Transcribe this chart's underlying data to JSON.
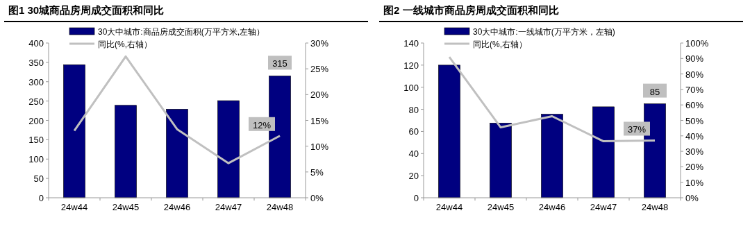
{
  "chart_data": [
    {
      "type": "bar",
      "title": "图1  30城商品房周成交面积和同比",
      "categories": [
        "24w44",
        "24w45",
        "24w46",
        "24w47",
        "24w48"
      ],
      "series": [
        {
          "name": "30大中城市:商品房成交面积(万平方米,左轴）",
          "color": "#000080",
          "values": [
            344,
            239,
            229,
            251,
            315
          ],
          "value_labels": [
            null,
            null,
            null,
            null,
            "315"
          ]
        },
        {
          "name": "同比(%,右轴）",
          "type": "line",
          "axis": "y2",
          "color": "#c0c0c0",
          "values": [
            13,
            27.4,
            13.3,
            6.7,
            12
          ],
          "value_labels": [
            null,
            null,
            null,
            null,
            "12%"
          ]
        }
      ],
      "ylim": [
        0,
        400
      ],
      "yticks": [
        0,
        50,
        100,
        150,
        200,
        250,
        300,
        350,
        400
      ],
      "y2lim": [
        0,
        30
      ],
      "y2ticks": [
        {
          "value": 0,
          "label": "0%"
        },
        {
          "value": 5,
          "label": "5%"
        },
        {
          "value": 10,
          "label": "10%"
        },
        {
          "value": 15,
          "label": "15%"
        },
        {
          "value": 20,
          "label": "20%"
        },
        {
          "value": 25,
          "label": "25%"
        },
        {
          "value": 30,
          "label": "30%"
        }
      ],
      "legend": "top left",
      "grid": false
    },
    {
      "type": "bar",
      "title": "图2  一线城市商品房周成交面积和同比",
      "categories": [
        "24w44",
        "24w45",
        "24w46",
        "24w47",
        "24w48"
      ],
      "series": [
        {
          "name": "30大中城市:一线城市(万平方米，左轴)",
          "color": "#000080",
          "values": [
            120,
            67.6,
            75.6,
            82.3,
            85
          ],
          "value_labels": [
            null,
            null,
            null,
            null,
            "85"
          ]
        },
        {
          "name": "同比(%,右轴）",
          "type": "line",
          "axis": "y2",
          "color": "#c0c0c0",
          "values": [
            91,
            45.5,
            52.7,
            36.5,
            37
          ],
          "value_labels": [
            null,
            null,
            null,
            null,
            "37%"
          ]
        }
      ],
      "ylim": [
        0,
        140
      ],
      "yticks": [
        0,
        20,
        40,
        60,
        80,
        100,
        120,
        140
      ],
      "y2lim": [
        0,
        100
      ],
      "y2ticks": [
        {
          "value": 0,
          "label": "0%"
        },
        {
          "value": 10,
          "label": "10%"
        },
        {
          "value": 20,
          "label": "20%"
        },
        {
          "value": 30,
          "label": "30%"
        },
        {
          "value": 40,
          "label": "40%"
        },
        {
          "value": 50,
          "label": "50%"
        },
        {
          "value": 60,
          "label": "60%"
        },
        {
          "value": 70,
          "label": "70%"
        },
        {
          "value": 80,
          "label": "80%"
        },
        {
          "value": 90,
          "label": "90%"
        },
        {
          "value": 100,
          "label": "100%"
        }
      ],
      "legend": "top left",
      "grid": false
    }
  ]
}
